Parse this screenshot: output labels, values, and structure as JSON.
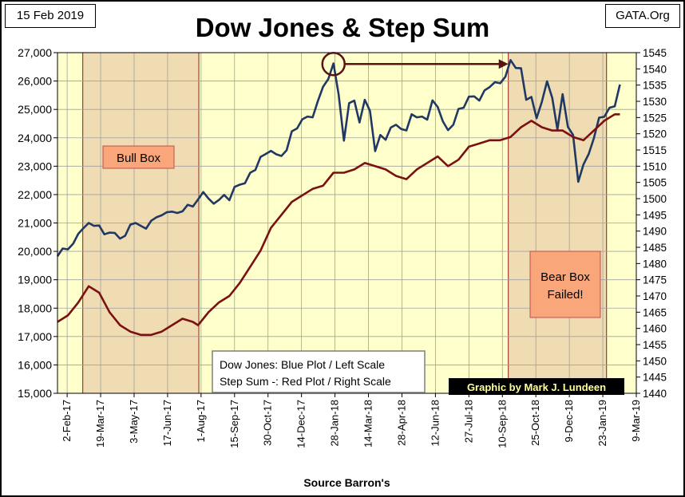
{
  "header": {
    "date": "15 Feb 2019",
    "title": "Dow Jones & Step Sum",
    "source": "GATA.Org"
  },
  "chart_data": {
    "type": "line",
    "title": "Dow Jones & Step Sum",
    "xlabel": "Source Barron's",
    "x_ticks": [
      "2-Feb-17",
      "19-Mar-17",
      "3-May-17",
      "17-Jun-17",
      "1-Aug-17",
      "15-Sep-17",
      "30-Oct-17",
      "14-Dec-17",
      "28-Jan-18",
      "14-Mar-18",
      "28-Apr-18",
      "12-Jun-18",
      "27-Jul-18",
      "10-Sep-18",
      "25-Oct-18",
      "9-Dec-18",
      "23-Jan-19",
      "9-Mar-19"
    ],
    "x_range": [
      "2017-01-20",
      "2019-03-09"
    ],
    "y_left": {
      "min": 15000,
      "max": 27000,
      "step": 1000,
      "tick_labels": [
        "15,000",
        "16,000",
        "17,000",
        "18,000",
        "19,000",
        "20,000",
        "21,000",
        "22,000",
        "23,000",
        "24,000",
        "25,000",
        "26,000",
        "27,000"
      ]
    },
    "y_right": {
      "min": 1440,
      "max": 1545,
      "step": 5,
      "tick_labels": [
        "1440",
        "1445",
        "1450",
        "1455",
        "1460",
        "1465",
        "1470",
        "1475",
        "1480",
        "1485",
        "1490",
        "1495",
        "1500",
        "1505",
        "1510",
        "1515",
        "1520",
        "1525",
        "1530",
        "1535",
        "1540",
        "1545"
      ]
    },
    "grid": true,
    "series": [
      {
        "name": "Dow Jones",
        "axis": "left",
        "color": "#1f3864",
        "points": [
          [
            "2017-01-20",
            19830
          ],
          [
            "2017-01-27",
            20100
          ],
          [
            "2017-02-03",
            20070
          ],
          [
            "2017-02-10",
            20270
          ],
          [
            "2017-02-17",
            20620
          ],
          [
            "2017-02-24",
            20820
          ],
          [
            "2017-03-03",
            21000
          ],
          [
            "2017-03-10",
            20900
          ],
          [
            "2017-03-17",
            20910
          ],
          [
            "2017-03-24",
            20600
          ],
          [
            "2017-03-31",
            20660
          ],
          [
            "2017-04-07",
            20650
          ],
          [
            "2017-04-14",
            20450
          ],
          [
            "2017-04-21",
            20550
          ],
          [
            "2017-04-28",
            20940
          ],
          [
            "2017-05-05",
            21000
          ],
          [
            "2017-05-12",
            20900
          ],
          [
            "2017-05-19",
            20800
          ],
          [
            "2017-05-26",
            21080
          ],
          [
            "2017-06-02",
            21200
          ],
          [
            "2017-06-09",
            21270
          ],
          [
            "2017-06-16",
            21380
          ],
          [
            "2017-06-23",
            21400
          ],
          [
            "2017-06-30",
            21350
          ],
          [
            "2017-07-07",
            21410
          ],
          [
            "2017-07-14",
            21640
          ],
          [
            "2017-07-21",
            21580
          ],
          [
            "2017-07-28",
            21830
          ],
          [
            "2017-08-04",
            22090
          ],
          [
            "2017-08-11",
            21860
          ],
          [
            "2017-08-18",
            21680
          ],
          [
            "2017-08-25",
            21810
          ],
          [
            "2017-09-01",
            21990
          ],
          [
            "2017-09-08",
            21800
          ],
          [
            "2017-09-15",
            22270
          ],
          [
            "2017-09-22",
            22350
          ],
          [
            "2017-09-29",
            22400
          ],
          [
            "2017-10-06",
            22770
          ],
          [
            "2017-10-13",
            22870
          ],
          [
            "2017-10-20",
            23330
          ],
          [
            "2017-10-27",
            23430
          ],
          [
            "2017-11-03",
            23540
          ],
          [
            "2017-11-10",
            23420
          ],
          [
            "2017-11-17",
            23360
          ],
          [
            "2017-11-24",
            23560
          ],
          [
            "2017-12-01",
            24230
          ],
          [
            "2017-12-08",
            24330
          ],
          [
            "2017-12-15",
            24650
          ],
          [
            "2017-12-22",
            24750
          ],
          [
            "2017-12-29",
            24720
          ],
          [
            "2018-01-05",
            25300
          ],
          [
            "2018-01-12",
            25800
          ],
          [
            "2018-01-19",
            26070
          ],
          [
            "2018-01-26",
            26620
          ],
          [
            "2018-02-02",
            25520
          ],
          [
            "2018-02-09",
            23900
          ],
          [
            "2018-02-16",
            25220
          ],
          [
            "2018-02-23",
            25310
          ],
          [
            "2018-03-02",
            24540
          ],
          [
            "2018-03-09",
            25340
          ],
          [
            "2018-03-16",
            24950
          ],
          [
            "2018-03-23",
            23530
          ],
          [
            "2018-03-30",
            24100
          ],
          [
            "2018-04-06",
            23930
          ],
          [
            "2018-04-13",
            24360
          ],
          [
            "2018-04-20",
            24460
          ],
          [
            "2018-04-27",
            24310
          ],
          [
            "2018-05-04",
            24260
          ],
          [
            "2018-05-11",
            24830
          ],
          [
            "2018-05-18",
            24720
          ],
          [
            "2018-05-25",
            24750
          ],
          [
            "2018-06-01",
            24640
          ],
          [
            "2018-06-08",
            25320
          ],
          [
            "2018-06-15",
            25090
          ],
          [
            "2018-06-22",
            24580
          ],
          [
            "2018-06-29",
            24270
          ],
          [
            "2018-07-06",
            24460
          ],
          [
            "2018-07-13",
            25020
          ],
          [
            "2018-07-20",
            25060
          ],
          [
            "2018-07-27",
            25450
          ],
          [
            "2018-08-03",
            25460
          ],
          [
            "2018-08-10",
            25310
          ],
          [
            "2018-08-17",
            25670
          ],
          [
            "2018-08-24",
            25790
          ],
          [
            "2018-08-31",
            25960
          ],
          [
            "2018-09-07",
            25920
          ],
          [
            "2018-09-14",
            26150
          ],
          [
            "2018-09-21",
            26740
          ],
          [
            "2018-09-28",
            26460
          ],
          [
            "2018-10-05",
            26450
          ],
          [
            "2018-10-12",
            25340
          ],
          [
            "2018-10-19",
            25440
          ],
          [
            "2018-10-26",
            24690
          ],
          [
            "2018-11-02",
            25270
          ],
          [
            "2018-11-09",
            25990
          ],
          [
            "2018-11-16",
            25410
          ],
          [
            "2018-11-23",
            24290
          ],
          [
            "2018-11-30",
            25540
          ],
          [
            "2018-12-07",
            24390
          ],
          [
            "2018-12-14",
            24100
          ],
          [
            "2018-12-21",
            22450
          ],
          [
            "2018-12-28",
            23060
          ],
          [
            "2019-01-04",
            23430
          ],
          [
            "2019-01-11",
            23990
          ],
          [
            "2019-01-18",
            24710
          ],
          [
            "2019-01-25",
            24740
          ],
          [
            "2019-02-01",
            25060
          ],
          [
            "2019-02-08",
            25110
          ],
          [
            "2019-02-15",
            25880
          ]
        ]
      },
      {
        "name": "Step Sum",
        "axis": "right",
        "color": "#7b1010",
        "points": [
          [
            "2017-01-20",
            1462
          ],
          [
            "2017-02-03",
            1464
          ],
          [
            "2017-02-17",
            1468
          ],
          [
            "2017-03-03",
            1473
          ],
          [
            "2017-03-17",
            1471
          ],
          [
            "2017-03-31",
            1465
          ],
          [
            "2017-04-14",
            1461
          ],
          [
            "2017-04-28",
            1459
          ],
          [
            "2017-05-12",
            1458
          ],
          [
            "2017-05-26",
            1458
          ],
          [
            "2017-06-09",
            1459
          ],
          [
            "2017-06-23",
            1461
          ],
          [
            "2017-07-07",
            1463
          ],
          [
            "2017-07-21",
            1462
          ],
          [
            "2017-07-28",
            1461
          ],
          [
            "2017-08-11",
            1465
          ],
          [
            "2017-08-25",
            1468
          ],
          [
            "2017-09-08",
            1470
          ],
          [
            "2017-09-22",
            1474
          ],
          [
            "2017-10-06",
            1479
          ],
          [
            "2017-10-20",
            1484
          ],
          [
            "2017-11-03",
            1491
          ],
          [
            "2017-11-17",
            1495
          ],
          [
            "2017-12-01",
            1499
          ],
          [
            "2017-12-15",
            1501
          ],
          [
            "2017-12-29",
            1503
          ],
          [
            "2018-01-12",
            1504
          ],
          [
            "2018-01-26",
            1508
          ],
          [
            "2018-02-09",
            1508
          ],
          [
            "2018-02-23",
            1509
          ],
          [
            "2018-03-09",
            1511
          ],
          [
            "2018-03-23",
            1510
          ],
          [
            "2018-04-06",
            1509
          ],
          [
            "2018-04-20",
            1507
          ],
          [
            "2018-05-04",
            1506
          ],
          [
            "2018-05-18",
            1509
          ],
          [
            "2018-06-01",
            1511
          ],
          [
            "2018-06-15",
            1513
          ],
          [
            "2018-06-29",
            1510
          ],
          [
            "2018-07-13",
            1512
          ],
          [
            "2018-07-27",
            1516
          ],
          [
            "2018-08-10",
            1517
          ],
          [
            "2018-08-24",
            1518
          ],
          [
            "2018-09-07",
            1518
          ],
          [
            "2018-09-21",
            1519
          ],
          [
            "2018-10-05",
            1522
          ],
          [
            "2018-10-19",
            1524
          ],
          [
            "2018-11-02",
            1522
          ],
          [
            "2018-11-16",
            1521
          ],
          [
            "2018-11-30",
            1521
          ],
          [
            "2018-12-14",
            1519
          ],
          [
            "2018-12-28",
            1518
          ],
          [
            "2019-01-11",
            1521
          ],
          [
            "2019-01-25",
            1524
          ],
          [
            "2019-02-08",
            1526
          ],
          [
            "2019-02-15",
            1526
          ]
        ]
      }
    ],
    "shaded_regions": [
      {
        "start": "2017-02-23",
        "end": "2017-07-29",
        "color": "#efdcb2"
      },
      {
        "start": "2018-09-18",
        "end": "2019-01-28",
        "color": "#efdcb2"
      }
    ],
    "annotations": {
      "bull_box": "Bull Box",
      "bear_box_line1": "Bear Box",
      "bear_box_line2": "Failed!",
      "legend_line1": "Dow Jones: Blue Plot / Left Scale",
      "legend_line2": "Step Sum -: Red Plot / Right Scale",
      "credit": "Graphic by Mark J. Lundeen",
      "circle_date": "2018-01-26",
      "circle_value": 26600,
      "arrow_end_date": "2018-09-18",
      "arrow_end_value": 26600
    },
    "colors": {
      "plot_background": "#ffffcc",
      "shade": "#efdcb2",
      "dow_line": "#1f3864",
      "step_line": "#7b1010",
      "box_fill": "#f9a67a",
      "box_border": "#c0504d",
      "shade_border": "#8b1a1a"
    }
  }
}
